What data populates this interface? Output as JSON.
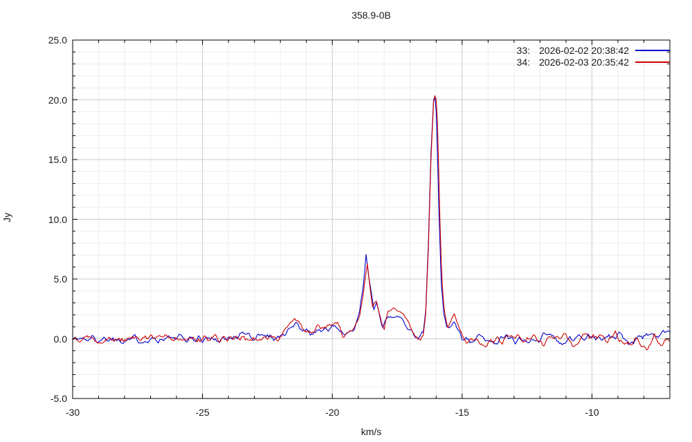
{
  "chart_data": {
    "type": "line",
    "title": "358.9-0B",
    "xlabel": "km/s",
    "ylabel": "Jy",
    "xlim": [
      -30,
      -7
    ],
    "ylim": [
      -5,
      25
    ],
    "x_major_ticks": [
      -30,
      -25,
      -20,
      -15,
      -10
    ],
    "x_major_tick_labels": [
      "-30",
      "-25",
      "-20",
      "-15",
      "-10"
    ],
    "y_major_ticks": [
      -5,
      0,
      5,
      10,
      15,
      20,
      25
    ],
    "y_major_tick_labels": [
      "-5.0",
      "0.0",
      "5.0",
      "10.0",
      "15.0",
      "20.0",
      "25.0"
    ],
    "minor_tick_step": 1,
    "grid": {
      "minor_color": "#ededed",
      "major_color": "#cccccc"
    },
    "border_color": "#000000",
    "sample_step_kms": 0.05,
    "noise": {
      "amplitude": 0.32
    },
    "series": [
      {
        "name": "33",
        "datetime": "2026-02-02 20:38:42",
        "label": "33:  2026-02-02 20:38:42",
        "color": "#0000cc",
        "noise_seed": 1337,
        "peak_velocity_kms": -16.05,
        "peak_jy": 20.3,
        "secondary_peak_velocity_kms": -18.7,
        "secondary_peak_jy": 7.0,
        "anchors_kms_jy": [
          [
            -30,
            0.0
          ],
          [
            -29,
            0.0
          ],
          [
            -28,
            0.0
          ],
          [
            -27,
            0.0
          ],
          [
            -26,
            0.0
          ],
          [
            -25,
            0.0
          ],
          [
            -24,
            0.0
          ],
          [
            -23.4,
            0.4
          ],
          [
            -23,
            0.1
          ],
          [
            -22.7,
            0.5
          ],
          [
            -22.4,
            0.2
          ],
          [
            -22,
            0.1
          ],
          [
            -21.7,
            0.6
          ],
          [
            -21.4,
            1.3
          ],
          [
            -21.1,
            0.8
          ],
          [
            -20.8,
            0.4
          ],
          [
            -20.5,
            0.9
          ],
          [
            -20.2,
            0.7
          ],
          [
            -19.9,
            1.1
          ],
          [
            -19.6,
            0.4
          ],
          [
            -19.4,
            0.2
          ],
          [
            -19.15,
            0.8
          ],
          [
            -18.95,
            2.2
          ],
          [
            -18.8,
            4.6
          ],
          [
            -18.7,
            7.0
          ],
          [
            -18.6,
            5.2
          ],
          [
            -18.5,
            3.9
          ],
          [
            -18.4,
            2.4
          ],
          [
            -18.3,
            3.0
          ],
          [
            -18.2,
            2.2
          ],
          [
            -18.05,
            0.8
          ],
          [
            -17.9,
            1.6
          ],
          [
            -17.7,
            1.95
          ],
          [
            -17.5,
            1.8
          ],
          [
            -17.3,
            1.6
          ],
          [
            -17.1,
            1.1
          ],
          [
            -16.95,
            0.7
          ],
          [
            -16.8,
            0.3
          ],
          [
            -16.65,
            0.1
          ],
          [
            -16.5,
            0.6
          ],
          [
            -16.4,
            2.5
          ],
          [
            -16.3,
            8.0
          ],
          [
            -16.2,
            15.5
          ],
          [
            -16.1,
            20.0
          ],
          [
            -16.05,
            20.3
          ],
          [
            -16.0,
            19.0
          ],
          [
            -15.95,
            15.5
          ],
          [
            -15.9,
            11.0
          ],
          [
            -15.8,
            4.5
          ],
          [
            -15.7,
            2.0
          ],
          [
            -15.6,
            1.1
          ],
          [
            -15.45,
            1.0
          ],
          [
            -15.3,
            1.3
          ],
          [
            -15.15,
            0.7
          ],
          [
            -15.0,
            0.2
          ],
          [
            -14.8,
            0.1
          ],
          [
            -14.5,
            -0.2
          ],
          [
            -14.2,
            0.2
          ],
          [
            -13.9,
            -0.3
          ],
          [
            -13.5,
            0.1
          ],
          [
            -13,
            0.0
          ],
          [
            -12.5,
            -0.2
          ],
          [
            -12,
            0.1
          ],
          [
            -11.6,
            0.6
          ],
          [
            -11.2,
            -0.5
          ],
          [
            -10.8,
            0.0
          ],
          [
            -10.4,
            0.1
          ],
          [
            -10,
            0.1
          ],
          [
            -9.5,
            -0.1
          ],
          [
            -9,
            0.2
          ],
          [
            -8.6,
            -0.3
          ],
          [
            -8.2,
            0.3
          ],
          [
            -7.8,
            0.5
          ],
          [
            -7.5,
            0.2
          ],
          [
            -7.2,
            0.4
          ],
          [
            -7.0,
            0.5
          ]
        ]
      },
      {
        "name": "34",
        "datetime": "2026-02-03 20:35:42",
        "label": "34:  2026-02-03 20:35:42",
        "color": "#cc0000",
        "noise_seed": 4242,
        "peak_velocity_kms": -16.03,
        "peak_jy": 20.55,
        "secondary_peak_velocity_kms": -18.65,
        "secondary_peak_jy": 6.3,
        "anchors_kms_jy": [
          [
            -30,
            -0.1
          ],
          [
            -29,
            0.0
          ],
          [
            -28,
            -0.1
          ],
          [
            -27,
            0.0
          ],
          [
            -26,
            0.0
          ],
          [
            -25,
            -0.1
          ],
          [
            -24,
            0.0
          ],
          [
            -23.4,
            0.3
          ],
          [
            -23,
            0.0
          ],
          [
            -22.5,
            0.3
          ],
          [
            -22.1,
            0.0
          ],
          [
            -21.8,
            0.8
          ],
          [
            -21.45,
            1.8
          ],
          [
            -21.15,
            1.0
          ],
          [
            -20.85,
            0.5
          ],
          [
            -20.55,
            1.0
          ],
          [
            -20.25,
            0.8
          ],
          [
            -19.95,
            1.2
          ],
          [
            -19.8,
            1.4
          ],
          [
            -19.6,
            0.3
          ],
          [
            -19.4,
            0.3
          ],
          [
            -19.15,
            0.9
          ],
          [
            -18.95,
            2.0
          ],
          [
            -18.8,
            4.0
          ],
          [
            -18.65,
            6.3
          ],
          [
            -18.55,
            4.4
          ],
          [
            -18.45,
            2.6
          ],
          [
            -18.3,
            3.2
          ],
          [
            -18.15,
            1.8
          ],
          [
            -18.0,
            0.7
          ],
          [
            -17.85,
            2.3
          ],
          [
            -17.65,
            2.55
          ],
          [
            -17.45,
            2.35
          ],
          [
            -17.25,
            1.9
          ],
          [
            -17.05,
            1.2
          ],
          [
            -16.9,
            0.6
          ],
          [
            -16.75,
            0.2
          ],
          [
            -16.6,
            -0.2
          ],
          [
            -16.5,
            0.4
          ],
          [
            -16.4,
            2.2
          ],
          [
            -16.3,
            7.5
          ],
          [
            -16.2,
            15.0
          ],
          [
            -16.1,
            19.8
          ],
          [
            -16.03,
            20.55
          ],
          [
            -15.97,
            19.5
          ],
          [
            -15.92,
            16.0
          ],
          [
            -15.87,
            11.0
          ],
          [
            -15.78,
            4.8
          ],
          [
            -15.68,
            2.2
          ],
          [
            -15.55,
            1.0
          ],
          [
            -15.42,
            1.6
          ],
          [
            -15.3,
            2.05
          ],
          [
            -15.18,
            1.4
          ],
          [
            -15.0,
            0.4
          ],
          [
            -14.8,
            -0.2
          ],
          [
            -14.5,
            0.2
          ],
          [
            -14.2,
            -0.6
          ],
          [
            -13.9,
            0.1
          ],
          [
            -13.5,
            -0.2
          ],
          [
            -13.1,
            0.3
          ],
          [
            -12.7,
            -0.1
          ],
          [
            -12.3,
            0.2
          ],
          [
            -11.9,
            -0.3
          ],
          [
            -11.5,
            0.1
          ],
          [
            -11.1,
            0.2
          ],
          [
            -10.7,
            -0.5
          ],
          [
            -10.3,
            0.2
          ],
          [
            -9.9,
            0.3
          ],
          [
            -9.5,
            -0.2
          ],
          [
            -9.1,
            0.4
          ],
          [
            -8.7,
            -0.6
          ],
          [
            -8.3,
            -0.2
          ],
          [
            -7.9,
            -0.85
          ],
          [
            -7.6,
            0.1
          ],
          [
            -7.3,
            -0.3
          ],
          [
            -7.0,
            -0.15
          ]
        ]
      }
    ]
  },
  "legend": {
    "entries": [
      {
        "id_label": "33:",
        "datetime": "2026-02-02 20:38:42",
        "color": "#0000cc"
      },
      {
        "id_label": "34:",
        "datetime": "2026-02-03 20:35:42",
        "color": "#cc0000"
      }
    ]
  }
}
